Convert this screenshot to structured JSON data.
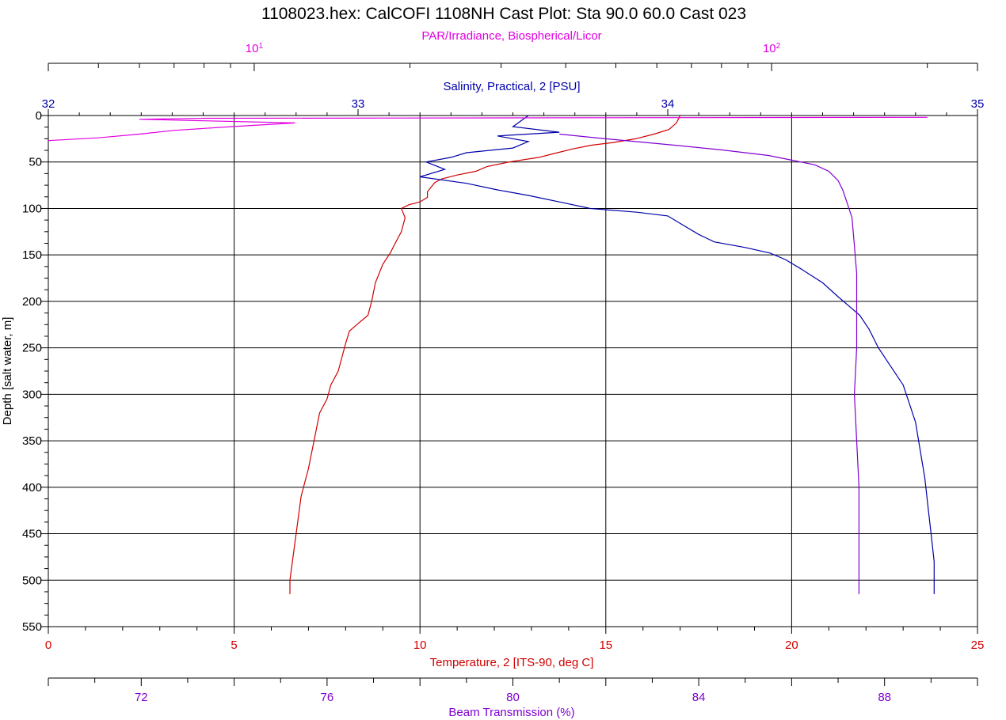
{
  "chart_data": {
    "type": "line",
    "title": "1108023.hex: CalCOFI 1108NH Cast Plot: Sta 90.0 60.0 Cast 023",
    "y_axis": {
      "label": "Depth [salt water, m]",
      "range": [
        0,
        550
      ],
      "inverted": true,
      "ticks": [
        "0",
        "50",
        "100",
        "150",
        "200",
        "250",
        "300",
        "350",
        "400",
        "450",
        "500",
        "550"
      ]
    },
    "grid": true,
    "axes": {
      "par": {
        "label": "PAR/Irradiance, Biospherical/Licor",
        "position": "top",
        "scale": "log",
        "range": [
          4,
          250
        ],
        "tick_values": [
          10,
          100
        ],
        "tick_base": "10",
        "tick_exponents": [
          "1",
          "2"
        ],
        "color": "#e000e0"
      },
      "salinity": {
        "label": "Salinity, Practical, 2 [PSU]",
        "position": "top",
        "range": [
          32,
          35
        ],
        "ticks": [
          "32",
          "33",
          "34",
          "35"
        ],
        "color": "#0000a8"
      },
      "temperature": {
        "label": "Temperature, 2 [ITS-90, deg C]",
        "position": "bottom",
        "range": [
          0,
          25
        ],
        "ticks": [
          "0",
          "5",
          "10",
          "15",
          "20",
          "25"
        ],
        "color": "#d00000"
      },
      "beam": {
        "label": "Beam Transmission (%)",
        "position": "bottom",
        "range": [
          70,
          90
        ],
        "ticks": [
          "72",
          "76",
          "80",
          "84",
          "88"
        ],
        "color": "#8000d0"
      }
    },
    "series": [
      {
        "axis": "temperature",
        "color": "#d00000",
        "points": [
          [
            17.0,
            0
          ],
          [
            16.9,
            8
          ],
          [
            16.7,
            15
          ],
          [
            16.3,
            20
          ],
          [
            15.8,
            25
          ],
          [
            15.2,
            29
          ],
          [
            14.6,
            32
          ],
          [
            14.1,
            36
          ],
          [
            13.7,
            40
          ],
          [
            13.2,
            45
          ],
          [
            12.4,
            50
          ],
          [
            11.8,
            55
          ],
          [
            11.5,
            60
          ],
          [
            11.0,
            64
          ],
          [
            10.6,
            68
          ],
          [
            10.4,
            72
          ],
          [
            10.3,
            77
          ],
          [
            10.2,
            82
          ],
          [
            10.2,
            88
          ],
          [
            10.0,
            93
          ],
          [
            9.7,
            96
          ],
          [
            9.5,
            100
          ],
          [
            9.6,
            110
          ],
          [
            9.5,
            125
          ],
          [
            9.3,
            140
          ],
          [
            9.2,
            148
          ],
          [
            9.0,
            160
          ],
          [
            8.8,
            180
          ],
          [
            8.7,
            200
          ],
          [
            8.6,
            215
          ],
          [
            8.3,
            225
          ],
          [
            8.1,
            232
          ],
          [
            8.0,
            245
          ],
          [
            7.9,
            260
          ],
          [
            7.8,
            275
          ],
          [
            7.6,
            290
          ],
          [
            7.5,
            305
          ],
          [
            7.3,
            320
          ],
          [
            7.2,
            340
          ],
          [
            7.1,
            360
          ],
          [
            7.0,
            380
          ],
          [
            6.9,
            395
          ],
          [
            6.8,
            410
          ],
          [
            6.7,
            440
          ],
          [
            6.6,
            470
          ],
          [
            6.5,
            500
          ],
          [
            6.5,
            515
          ]
        ]
      },
      {
        "axis": "salinity",
        "color": "#0000a8",
        "points": [
          [
            33.55,
            0
          ],
          [
            33.5,
            12
          ],
          [
            33.65,
            18
          ],
          [
            33.45,
            22
          ],
          [
            33.55,
            28
          ],
          [
            33.5,
            35
          ],
          [
            33.35,
            40
          ],
          [
            33.3,
            45
          ],
          [
            33.22,
            50
          ],
          [
            33.28,
            58
          ],
          [
            33.2,
            66
          ],
          [
            33.35,
            73
          ],
          [
            33.45,
            80
          ],
          [
            33.55,
            86
          ],
          [
            33.65,
            93
          ],
          [
            33.75,
            100
          ],
          [
            33.9,
            104
          ],
          [
            34.0,
            108
          ],
          [
            34.05,
            118
          ],
          [
            34.1,
            128
          ],
          [
            34.15,
            136
          ],
          [
            34.25,
            142
          ],
          [
            34.33,
            148
          ],
          [
            34.38,
            155
          ],
          [
            34.43,
            165
          ],
          [
            34.5,
            180
          ],
          [
            34.55,
            195
          ],
          [
            34.62,
            215
          ],
          [
            34.65,
            230
          ],
          [
            34.68,
            250
          ],
          [
            34.72,
            270
          ],
          [
            34.76,
            290
          ],
          [
            34.78,
            310
          ],
          [
            34.8,
            330
          ],
          [
            34.81,
            350
          ],
          [
            34.82,
            370
          ],
          [
            34.83,
            390
          ],
          [
            34.84,
            420
          ],
          [
            34.85,
            450
          ],
          [
            34.86,
            480
          ],
          [
            34.86,
            500
          ],
          [
            34.86,
            515
          ]
        ]
      },
      {
        "axis": "beam",
        "color": "#8000d0",
        "points": [
          [
            81.0,
            20
          ],
          [
            82.0,
            25
          ],
          [
            83.5,
            32
          ],
          [
            84.5,
            37
          ],
          [
            85.5,
            43
          ],
          [
            86.0,
            48
          ],
          [
            86.5,
            53
          ],
          [
            86.8,
            60
          ],
          [
            87.0,
            70
          ],
          [
            87.1,
            80
          ],
          [
            87.2,
            95
          ],
          [
            87.3,
            110
          ],
          [
            87.35,
            140
          ],
          [
            87.4,
            170
          ],
          [
            87.4,
            200
          ],
          [
            87.4,
            250
          ],
          [
            87.35,
            300
          ],
          [
            87.4,
            350
          ],
          [
            87.45,
            400
          ],
          [
            87.45,
            450
          ],
          [
            87.45,
            500
          ],
          [
            87.45,
            515
          ]
        ]
      },
      {
        "axis": "par",
        "color": "#e000e0",
        "points": [
          [
            200,
            2
          ],
          [
            8,
            3
          ],
          [
            6,
            4
          ],
          [
            12,
            8
          ],
          [
            9,
            12
          ],
          [
            7,
            16
          ],
          [
            6,
            20
          ],
          [
            5,
            24
          ],
          [
            4,
            27
          ]
        ]
      }
    ]
  }
}
